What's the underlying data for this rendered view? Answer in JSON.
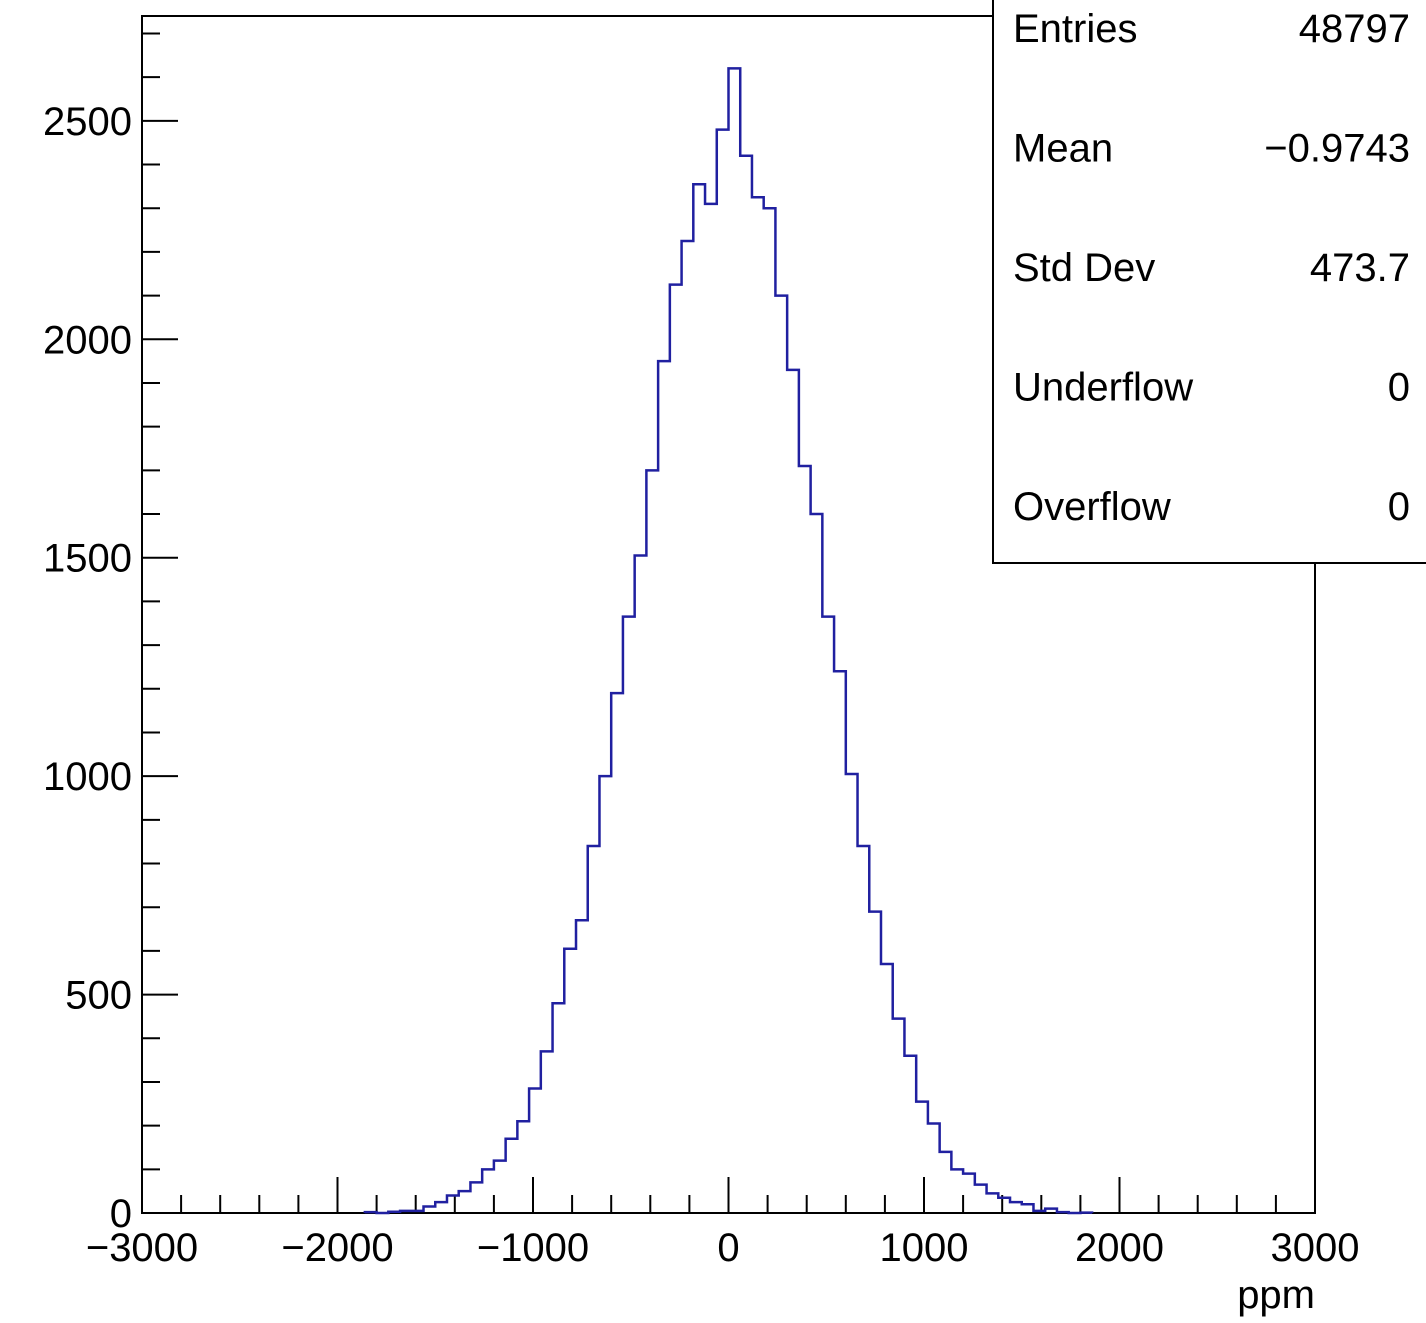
{
  "chart_data": {
    "type": "histogram",
    "title": "",
    "xlabel": "ppm",
    "ylabel": "",
    "xlim": [
      -3000,
      3000
    ],
    "ylim": [
      0,
      2740
    ],
    "x_ticks": [
      -3000,
      -2000,
      -1000,
      0,
      1000,
      2000,
      3000
    ],
    "x_tick_labels": [
      "−3000",
      "−2000",
      "−1000",
      "0",
      "1000",
      "2000",
      "3000"
    ],
    "y_ticks": [
      0,
      500,
      1000,
      1500,
      2000,
      2500
    ],
    "y_tick_labels": [
      "0",
      "500",
      "1000",
      "1500",
      "2000",
      "2500"
    ],
    "grid": false,
    "line_color": "#2020a0",
    "bin_width": 60,
    "bins": [
      {
        "x0": -1860,
        "x1": -1800,
        "y": 2
      },
      {
        "x0": -1800,
        "x1": -1740,
        "y": 0
      },
      {
        "x0": -1740,
        "x1": -1680,
        "y": 3
      },
      {
        "x0": -1680,
        "x1": -1620,
        "y": 5
      },
      {
        "x0": -1620,
        "x1": -1560,
        "y": 5
      },
      {
        "x0": -1560,
        "x1": -1500,
        "y": 15
      },
      {
        "x0": -1500,
        "x1": -1440,
        "y": 25
      },
      {
        "x0": -1440,
        "x1": -1380,
        "y": 40
      },
      {
        "x0": -1380,
        "x1": -1320,
        "y": 50
      },
      {
        "x0": -1320,
        "x1": -1260,
        "y": 70
      },
      {
        "x0": -1260,
        "x1": -1200,
        "y": 100
      },
      {
        "x0": -1200,
        "x1": -1140,
        "y": 120
      },
      {
        "x0": -1140,
        "x1": -1080,
        "y": 170
      },
      {
        "x0": -1080,
        "x1": -1020,
        "y": 210
      },
      {
        "x0": -1020,
        "x1": -960,
        "y": 285
      },
      {
        "x0": -960,
        "x1": -900,
        "y": 370
      },
      {
        "x0": -900,
        "x1": -840,
        "y": 480
      },
      {
        "x0": -840,
        "x1": -780,
        "y": 605
      },
      {
        "x0": -780,
        "x1": -720,
        "y": 670
      },
      {
        "x0": -720,
        "x1": -660,
        "y": 840
      },
      {
        "x0": -660,
        "x1": -600,
        "y": 1000
      },
      {
        "x0": -600,
        "x1": -540,
        "y": 1190
      },
      {
        "x0": -540,
        "x1": -480,
        "y": 1365
      },
      {
        "x0": -480,
        "x1": -420,
        "y": 1505
      },
      {
        "x0": -420,
        "x1": -360,
        "y": 1700
      },
      {
        "x0": -360,
        "x1": -300,
        "y": 1950
      },
      {
        "x0": -300,
        "x1": -240,
        "y": 2125
      },
      {
        "x0": -240,
        "x1": -180,
        "y": 2225
      },
      {
        "x0": -180,
        "x1": -120,
        "y": 2355
      },
      {
        "x0": -120,
        "x1": -60,
        "y": 2310
      },
      {
        "x0": -60,
        "x1": 0,
        "y": 2480
      },
      {
        "x0": 0,
        "x1": 60,
        "y": 2620
      },
      {
        "x0": 60,
        "x1": 120,
        "y": 2420
      },
      {
        "x0": 120,
        "x1": 180,
        "y": 2325
      },
      {
        "x0": 180,
        "x1": 240,
        "y": 2300
      },
      {
        "x0": 240,
        "x1": 300,
        "y": 2100
      },
      {
        "x0": 300,
        "x1": 360,
        "y": 1930
      },
      {
        "x0": 360,
        "x1": 420,
        "y": 1710
      },
      {
        "x0": 420,
        "x1": 480,
        "y": 1600
      },
      {
        "x0": 480,
        "x1": 540,
        "y": 1365
      },
      {
        "x0": 540,
        "x1": 600,
        "y": 1240
      },
      {
        "x0": 600,
        "x1": 660,
        "y": 1005
      },
      {
        "x0": 660,
        "x1": 720,
        "y": 840
      },
      {
        "x0": 720,
        "x1": 780,
        "y": 690
      },
      {
        "x0": 780,
        "x1": 840,
        "y": 570
      },
      {
        "x0": 840,
        "x1": 900,
        "y": 445
      },
      {
        "x0": 900,
        "x1": 960,
        "y": 360
      },
      {
        "x0": 960,
        "x1": 1020,
        "y": 255
      },
      {
        "x0": 1020,
        "x1": 1080,
        "y": 205
      },
      {
        "x0": 1080,
        "x1": 1140,
        "y": 140
      },
      {
        "x0": 1140,
        "x1": 1200,
        "y": 100
      },
      {
        "x0": 1200,
        "x1": 1260,
        "y": 90
      },
      {
        "x0": 1260,
        "x1": 1320,
        "y": 65
      },
      {
        "x0": 1320,
        "x1": 1380,
        "y": 45
      },
      {
        "x0": 1380,
        "x1": 1440,
        "y": 35
      },
      {
        "x0": 1440,
        "x1": 1500,
        "y": 25
      },
      {
        "x0": 1500,
        "x1": 1560,
        "y": 20
      },
      {
        "x0": 1560,
        "x1": 1620,
        "y": 5
      },
      {
        "x0": 1620,
        "x1": 1680,
        "y": 10
      },
      {
        "x0": 1680,
        "x1": 1740,
        "y": 2
      },
      {
        "x0": 1740,
        "x1": 1800,
        "y": 0
      },
      {
        "x0": 1800,
        "x1": 1860,
        "y": 1
      }
    ]
  },
  "stats_box": {
    "rows": [
      {
        "label": "Entries",
        "value": "48797"
      },
      {
        "label": "Mean",
        "value": "−0.9743"
      },
      {
        "label": "Std Dev",
        "value": "473.7"
      },
      {
        "label": "Underflow",
        "value": "0"
      },
      {
        "label": "Overflow",
        "value": "0"
      }
    ]
  }
}
